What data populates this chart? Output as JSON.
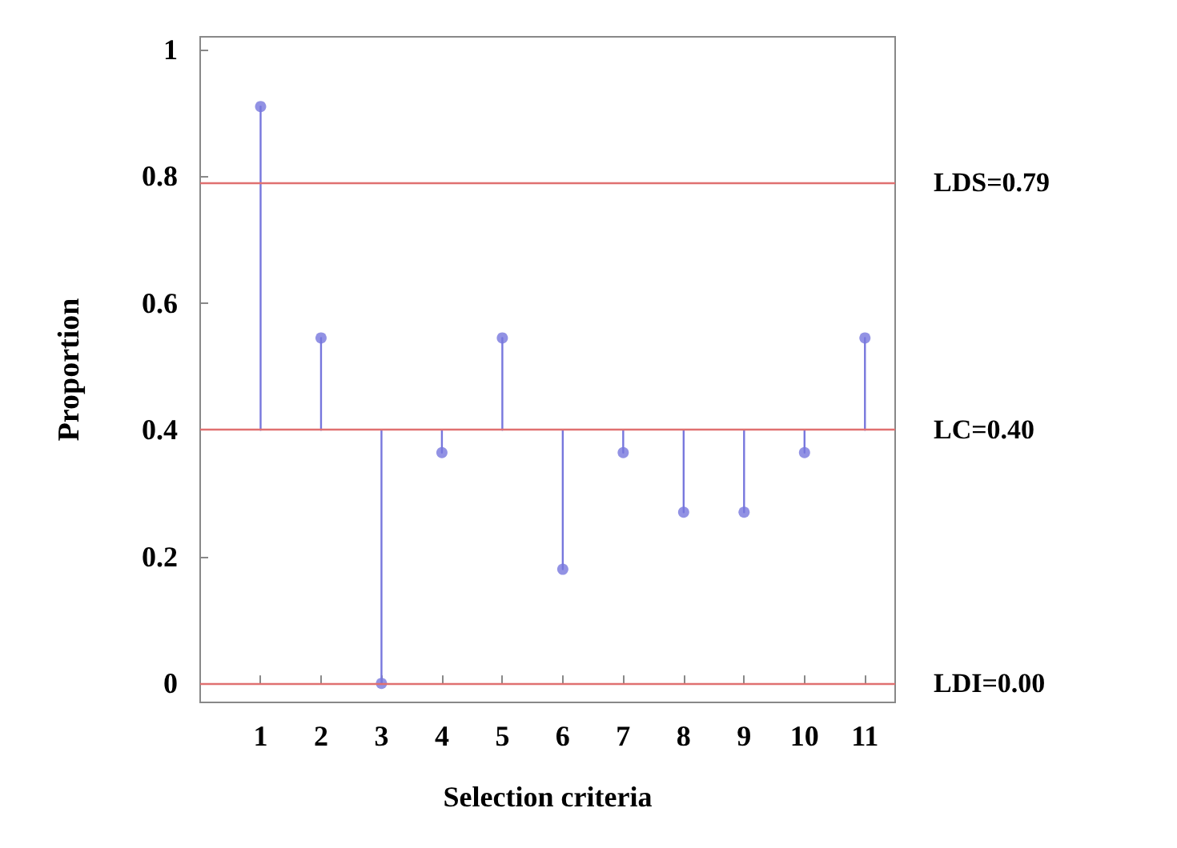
{
  "chart_data": {
    "type": "scatter",
    "xlabel": "Selection criteria",
    "ylabel": "Proportion",
    "x": [
      1,
      2,
      3,
      4,
      5,
      6,
      7,
      8,
      9,
      10,
      11
    ],
    "values": [
      0.91,
      0.545,
      0,
      0.364,
      0.545,
      0.18,
      0.364,
      0.27,
      0.27,
      0.364,
      0.545
    ],
    "errors": [
      [
        0.4,
        0.91
      ],
      [
        0.4,
        0.545
      ],
      [
        0,
        0.4
      ],
      [
        0.364,
        0.4
      ],
      [
        0.4,
        0.545
      ],
      [
        0.18,
        0.4
      ],
      [
        0.364,
        0.4
      ],
      [
        0.27,
        0.4
      ],
      [
        0.27,
        0.4
      ],
      [
        0.364,
        0.4
      ],
      [
        0.4,
        0.545
      ]
    ],
    "color": "#7777dd",
    "marker": "circle",
    "xlim": [
      0,
      11.5
    ],
    "xticks": [
      1,
      2,
      3,
      4,
      5,
      6,
      7,
      8,
      9,
      10,
      11
    ],
    "ylim": [
      -0.03,
      1.02
    ],
    "yticks": [
      0,
      0.2,
      0.4,
      0.6,
      0.8,
      1
    ],
    "ref_lines": [
      {
        "axis": "y",
        "value": 0.79,
        "label": "LDS=0.79",
        "color": "#e07070"
      },
      {
        "axis": "y",
        "value": 0.4,
        "label": "LC=0.40",
        "color": "#e07070"
      },
      {
        "axis": "y",
        "value": 0,
        "label": "LDI=0.00",
        "color": "#e07070"
      }
    ],
    "grid": false
  }
}
